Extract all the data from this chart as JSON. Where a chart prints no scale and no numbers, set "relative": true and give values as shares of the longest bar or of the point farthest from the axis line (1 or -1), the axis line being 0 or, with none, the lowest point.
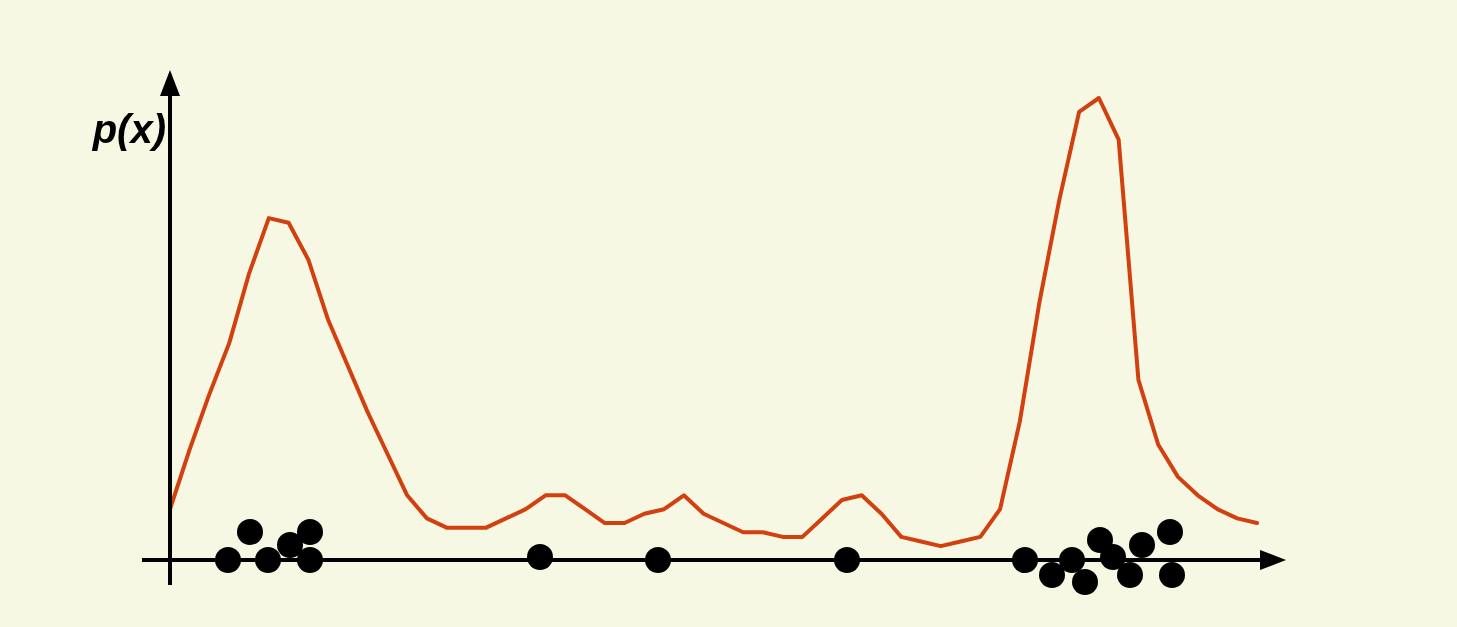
{
  "chart_data": {
    "type": "line",
    "relative": true,
    "ylabel": "p(x)",
    "marker": "none",
    "categories": [
      null,
      null,
      null,
      null,
      null,
      null,
      null,
      null,
      null,
      null,
      null,
      null,
      null,
      null,
      null,
      null,
      null,
      null,
      null,
      null,
      null,
      null,
      null,
      null,
      null,
      null,
      null,
      null,
      null,
      null,
      null,
      null,
      null,
      null,
      null,
      null,
      null,
      null,
      null,
      null,
      null,
      null,
      null,
      null,
      null,
      null,
      null,
      null,
      null,
      null,
      null,
      null,
      null,
      null,
      null,
      null
    ],
    "series": [
      {
        "color": "#d2400f",
        "values": [
          0.11,
          0.24,
          0.36,
          0.47,
          0.62,
          0.74,
          0.73,
          0.65,
          0.52,
          0.42,
          0.32,
          0.23,
          0.14,
          0.09,
          0.07,
          0.07,
          0.07,
          0.09,
          0.11,
          0.14,
          0.14,
          0.11,
          0.08,
          0.08,
          0.1,
          0.11,
          0.14,
          0.1,
          0.08,
          0.06,
          0.06,
          0.05,
          0.05,
          0.09,
          0.13,
          0.14,
          0.1,
          0.05,
          0.04,
          0.03,
          0.04,
          0.05,
          0.11,
          0.3,
          0.56,
          0.78,
          0.97,
          1.0,
          0.91,
          0.39,
          0.25,
          0.18,
          0.14,
          0.11,
          0.09,
          0.08
        ]
      }
    ]
  }
}
